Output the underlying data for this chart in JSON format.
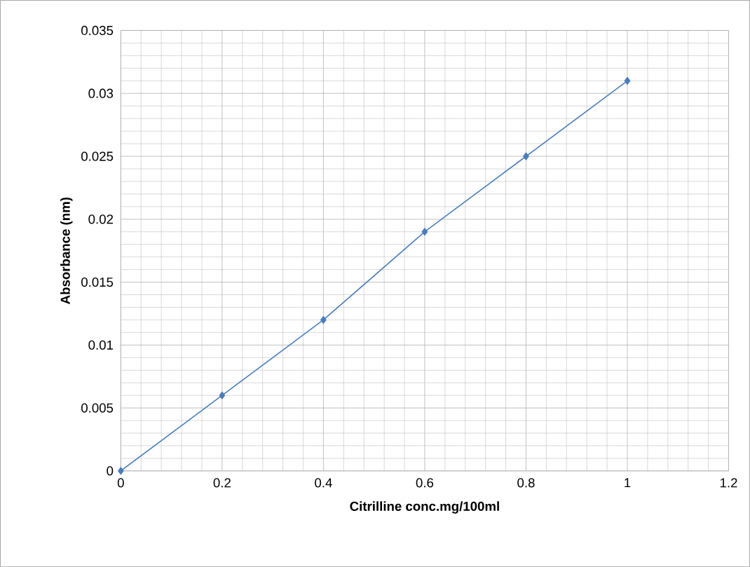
{
  "chart_data": {
    "type": "line",
    "xlabel": "Citrilline conc.mg/100ml",
    "ylabel": "Absorbance (nm)",
    "x": [
      0,
      0.2,
      0.4,
      0.6,
      0.8,
      1
    ],
    "series": [
      {
        "color": "#4a7ebb",
        "values": [
          0,
          0.006,
          0.012,
          0.019,
          0.025,
          0.031
        ]
      }
    ],
    "xlim": [
      0,
      1.2
    ],
    "xticks": [
      0,
      0.2,
      0.4,
      0.6,
      0.8,
      1,
      1.2
    ],
    "ylim": [
      0,
      0.035
    ],
    "yticks": [
      0,
      0.005,
      0.01,
      0.015,
      0.02,
      0.025,
      0.03,
      0.035
    ],
    "grid": true,
    "marker": "diamond",
    "line_style": "solid"
  }
}
